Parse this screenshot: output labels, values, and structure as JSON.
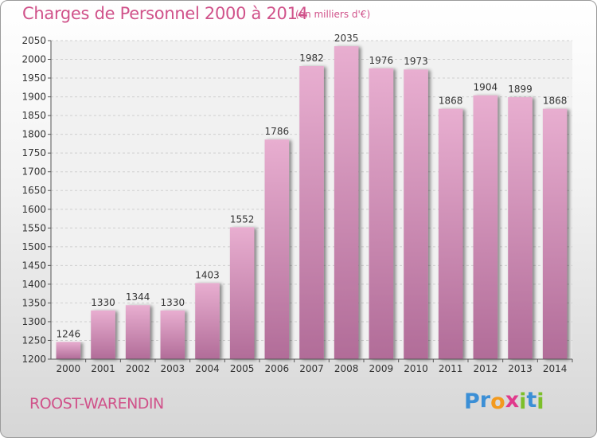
{
  "title": "Charges de Personnel 2000 à 2014",
  "subtitle": "(en milliers d'€)",
  "city": "ROOST-WARENDIN",
  "logo": {
    "letters": [
      "P",
      "r",
      "o",
      "x",
      "i",
      "t",
      "i"
    ],
    "colors": [
      "#3b8fd6",
      "#3b8fd6",
      "#f39a1e",
      "#e03a8c",
      "#7cbf2a",
      "#3b8fd6",
      "#7cbf2a"
    ]
  },
  "colors": {
    "accent": "#d0528a",
    "bar_top": "#e8aed0",
    "bar_bottom": "#b16c98",
    "bar_shadow": "#7a7a7a"
  },
  "chart_data": {
    "type": "bar",
    "categories": [
      "2000",
      "2001",
      "2002",
      "2003",
      "2004",
      "2005",
      "2006",
      "2007",
      "2008",
      "2009",
      "2010",
      "2011",
      "2012",
      "2013",
      "2014"
    ],
    "values": [
      1246,
      1330,
      1344,
      1330,
      1403,
      1552,
      1786,
      1982,
      2035,
      1976,
      1973,
      1868,
      1904,
      1899,
      1868
    ],
    "title": "Charges de Personnel 2000 à 2014",
    "xlabel": "",
    "ylabel": "",
    "ylim": [
      1200,
      2050
    ],
    "yticks": [
      1200,
      1250,
      1300,
      1350,
      1400,
      1450,
      1500,
      1550,
      1600,
      1650,
      1700,
      1750,
      1800,
      1850,
      1900,
      1950,
      2000,
      2050
    ],
    "grid": true,
    "legend": "none",
    "data_labels": true
  }
}
